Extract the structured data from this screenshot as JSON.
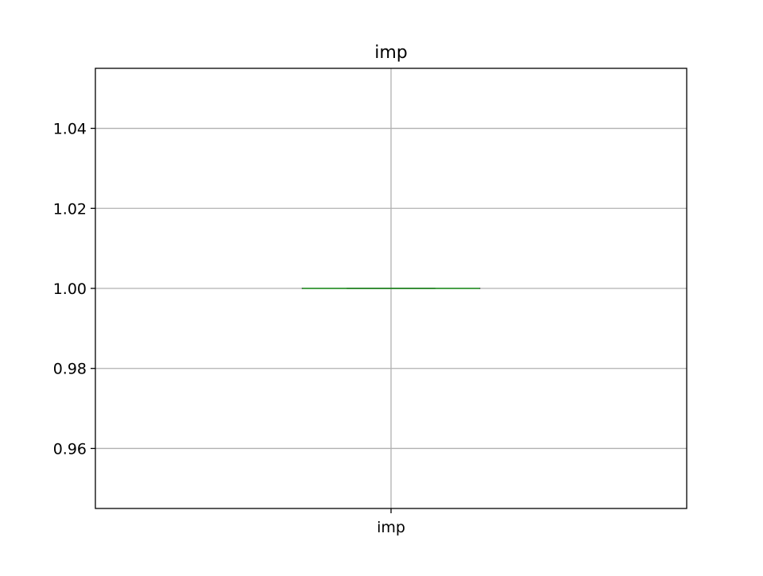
{
  "chart_data": {
    "type": "box",
    "title": "imp",
    "xlabel": "",
    "ylabel": "",
    "categories": [
      "imp"
    ],
    "series": [
      {
        "name": "imp",
        "min": 1.0,
        "q1": 1.0,
        "median": 1.0,
        "q3": 1.0,
        "max": 1.0
      }
    ],
    "ylim": [
      0.945,
      1.055
    ],
    "yticks": [
      0.96,
      0.98,
      1.0,
      1.02,
      1.04
    ],
    "ytick_labels": [
      "0.96",
      "0.98",
      "1.00",
      "1.02",
      "1.04"
    ],
    "grid": true,
    "colors": {
      "box": "#000000",
      "median": "#2ca02c",
      "grid": "#b0b0b0",
      "axes": "#000000"
    }
  }
}
